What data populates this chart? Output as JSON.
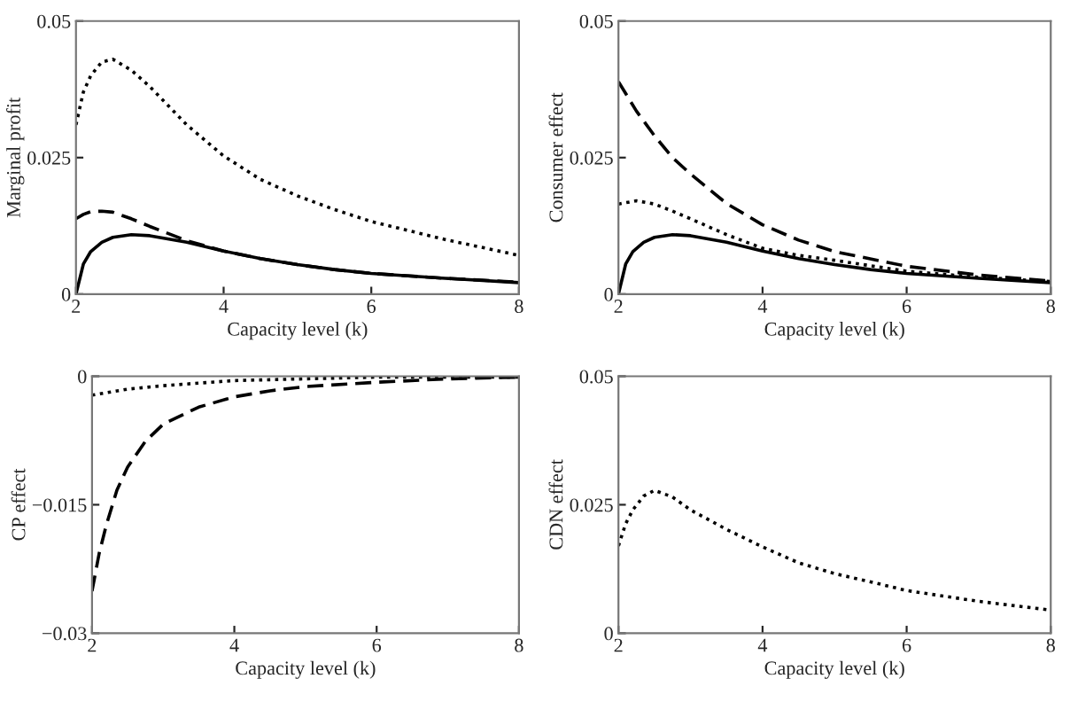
{
  "chart_data": [
    {
      "type": "line",
      "xlabel": "Capacity level (k)",
      "ylabel": "Marginal profit",
      "xlim": [
        2,
        8
      ],
      "xticks": [
        2,
        4,
        6,
        8
      ],
      "ylim": [
        0,
        0.05
      ],
      "yticks": [
        0,
        0.025,
        0.05
      ],
      "grid": false,
      "legend": false,
      "series": [
        {
          "color": "#000000",
          "line_style": "dotted",
          "x": [
            2,
            2.1,
            2.2,
            2.35,
            2.5,
            2.75,
            3,
            3.5,
            4,
            4.5,
            5,
            5.5,
            6,
            7,
            8
          ],
          "values": [
            0.031,
            0.037,
            0.04,
            0.0425,
            0.043,
            0.041,
            0.038,
            0.031,
            0.0253,
            0.021,
            0.018,
            0.0155,
            0.0133,
            0.01,
            0.0071
          ]
        },
        {
          "color": "#000000",
          "line_style": "dashed",
          "x": [
            2,
            2.1,
            2.2,
            2.35,
            2.5,
            2.75,
            3,
            3.5,
            4,
            4.5,
            5,
            5.5,
            6,
            7,
            8
          ],
          "values": [
            0.0138,
            0.0146,
            0.0151,
            0.0152,
            0.015,
            0.0138,
            0.0124,
            0.0098,
            0.0079,
            0.0065,
            0.0054,
            0.0045,
            0.0038,
            0.0029,
            0.0022
          ]
        },
        {
          "color": "#000000",
          "line_style": "solid",
          "x": [
            2,
            2.1,
            2.2,
            2.35,
            2.5,
            2.75,
            3,
            3.5,
            4,
            4.5,
            5,
            5.5,
            6,
            7,
            8
          ],
          "values": [
            0,
            0.0055,
            0.0078,
            0.0095,
            0.0104,
            0.0109,
            0.0107,
            0.0095,
            0.0079,
            0.0065,
            0.0054,
            0.0045,
            0.0038,
            0.0029,
            0.0021
          ]
        }
      ]
    },
    {
      "type": "line",
      "xlabel": "Capacity level (k)",
      "ylabel": "Consumer effect",
      "xlim": [
        2,
        8
      ],
      "xticks": [
        2,
        4,
        6,
        8
      ],
      "ylim": [
        0,
        0.05
      ],
      "yticks": [
        0,
        0.025,
        0.05
      ],
      "grid": false,
      "legend": false,
      "series": [
        {
          "color": "#000000",
          "line_style": "dashed",
          "x": [
            2,
            2.25,
            2.5,
            2.75,
            3,
            3.5,
            4,
            4.5,
            5,
            6,
            7,
            8
          ],
          "values": [
            0.0389,
            0.0335,
            0.029,
            0.025,
            0.022,
            0.0166,
            0.0127,
            0.0099,
            0.0078,
            0.0051,
            0.0035,
            0.0024
          ]
        },
        {
          "color": "#000000",
          "line_style": "dotted",
          "x": [
            2,
            2.25,
            2.5,
            2.75,
            3,
            3.5,
            4,
            4.5,
            5,
            6,
            7,
            8
          ],
          "values": [
            0.0165,
            0.0171,
            0.0165,
            0.0152,
            0.0138,
            0.0109,
            0.0084,
            0.0071,
            0.0062,
            0.0042,
            0.0031,
            0.0023
          ]
        },
        {
          "color": "#000000",
          "line_style": "solid",
          "x": [
            2,
            2.1,
            2.2,
            2.35,
            2.5,
            2.75,
            3,
            3.5,
            4,
            4.5,
            5,
            5.5,
            6,
            7,
            8
          ],
          "values": [
            0,
            0.0055,
            0.0078,
            0.0095,
            0.0104,
            0.0109,
            0.0107,
            0.0095,
            0.0079,
            0.0065,
            0.0054,
            0.0045,
            0.0038,
            0.0029,
            0.0021
          ]
        }
      ]
    },
    {
      "type": "line",
      "xlabel": "Capacity level (k)",
      "ylabel": "CP effect",
      "xlim": [
        2,
        8
      ],
      "xticks": [
        2,
        4,
        6,
        8
      ],
      "ylim": [
        -0.03,
        0
      ],
      "yticks": [
        {
          "value": -0.03,
          "label": "−0.03"
        },
        {
          "value": -0.015,
          "label": "−0.015"
        },
        0
      ],
      "grid": false,
      "legend": false,
      "series": [
        {
          "color": "#000000",
          "line_style": "dashed",
          "x": [
            2,
            2.1,
            2.2,
            2.35,
            2.5,
            2.75,
            3,
            3.5,
            4,
            4.5,
            5,
            6,
            7,
            8
          ],
          "values": [
            -0.0251,
            -0.0207,
            -0.0174,
            -0.0133,
            -0.0106,
            -0.0076,
            -0.0056,
            -0.0036,
            -0.0024,
            -0.0017,
            -0.0012,
            -0.0007,
            -0.0003,
            -0.0001
          ]
        },
        {
          "color": "#000000",
          "line_style": "dotted",
          "x": [
            2,
            2.5,
            3,
            4,
            5,
            6,
            8
          ],
          "values": [
            -0.0022,
            -0.0015,
            -0.0011,
            -0.0005,
            -0.0003,
            -0.0001,
            -0.0001
          ]
        }
      ]
    },
    {
      "type": "line",
      "xlabel": "Capacity level (k)",
      "ylabel": "CDN effect",
      "xlim": [
        2,
        8
      ],
      "xticks": [
        2,
        4,
        6,
        8
      ],
      "ylim": [
        0,
        0.05
      ],
      "yticks": [
        0,
        0.025,
        0.05
      ],
      "grid": false,
      "legend": false,
      "series": [
        {
          "color": "#000000",
          "line_style": "dotted",
          "x": [
            2,
            2.1,
            2.2,
            2.35,
            2.5,
            2.75,
            3,
            3.5,
            4,
            4.5,
            5,
            5.5,
            6,
            7,
            8
          ],
          "values": [
            0.017,
            0.0213,
            0.024,
            0.0267,
            0.0278,
            0.0265,
            0.024,
            0.0202,
            0.0168,
            0.0137,
            0.0116,
            0.01,
            0.0083,
            0.0062,
            0.0045
          ]
        }
      ]
    }
  ]
}
